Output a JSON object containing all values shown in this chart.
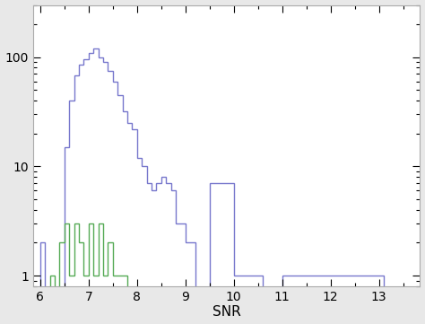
{
  "blue_bin_starts": [
    6.0,
    6.1,
    6.2,
    6.3,
    6.4,
    6.5,
    6.6,
    6.7,
    6.8,
    6.9,
    7.0,
    7.1,
    7.2,
    7.3,
    7.4,
    7.5,
    7.6,
    7.7,
    7.8,
    7.9,
    8.0,
    8.1,
    8.2,
    8.3,
    8.4,
    8.5,
    8.6,
    8.7,
    8.8,
    8.9,
    9.0,
    9.1,
    9.2,
    9.5,
    9.6,
    10.0,
    10.6,
    11.0,
    13.0
  ],
  "blue_counts": [
    2,
    0,
    0,
    0,
    0,
    15,
    40,
    68,
    85,
    95,
    110,
    120,
    100,
    90,
    75,
    60,
    45,
    32,
    25,
    22,
    12,
    10,
    7,
    6,
    7,
    8,
    7,
    6,
    3,
    3,
    2,
    2,
    0,
    7,
    7,
    1,
    0,
    1,
    1
  ],
  "green_bin_starts": [
    6.2,
    6.3,
    6.4,
    6.5,
    6.6,
    6.7,
    6.8,
    6.9,
    7.0,
    7.1,
    7.2,
    7.3,
    7.4,
    7.5,
    7.6,
    7.7
  ],
  "green_counts": [
    1,
    0,
    2,
    3,
    1,
    3,
    2,
    1,
    3,
    1,
    3,
    1,
    2,
    1,
    1,
    1
  ],
  "bin_width": 0.1,
  "blue_color": "#7777cc",
  "green_color": "#55aa55",
  "xlabel": "SNR",
  "xlim": [
    5.85,
    13.85
  ],
  "ylim": [
    0.8,
    300
  ],
  "xticks": [
    6,
    7,
    8,
    9,
    10,
    11,
    12,
    13
  ],
  "bg_color": "#e8e8e8",
  "plot_bg_color": "#ffffff"
}
